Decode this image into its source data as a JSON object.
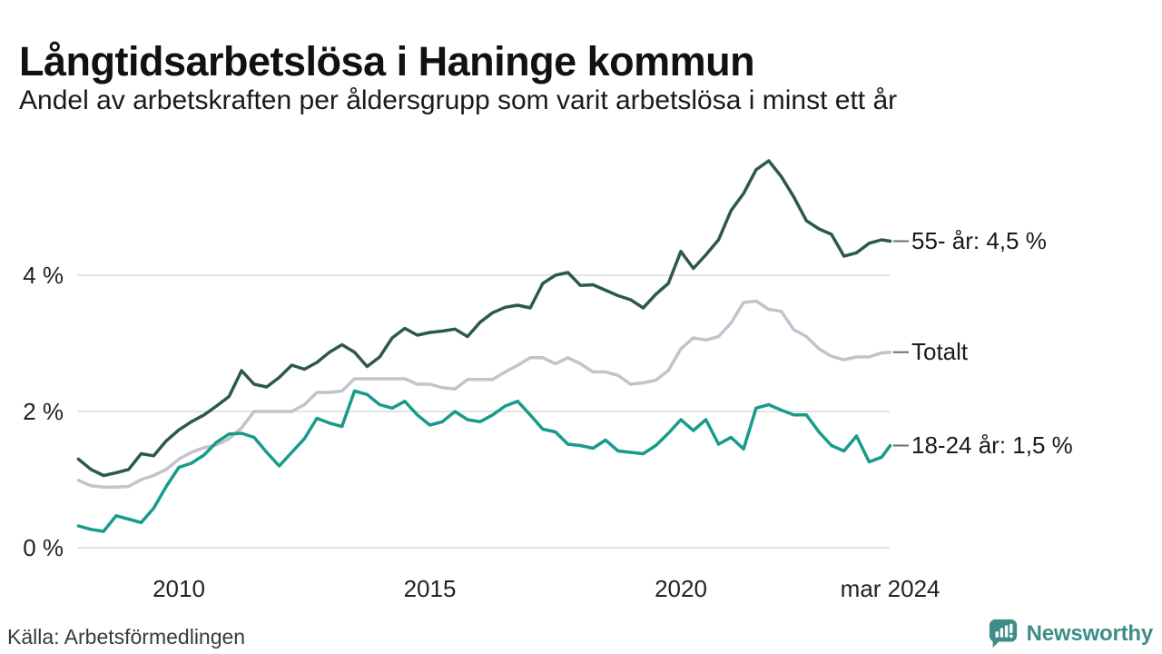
{
  "header": {
    "title": "Långtidsarbetslösa i Haninge kommun",
    "subtitle": "Andel av arbetskraften per åldersgrupp som varit arbetslösa i minst ett år"
  },
  "chart_data": {
    "type": "line",
    "title": "Långtidsarbetslösa i Haninge kommun",
    "xlabel": "",
    "ylabel": "",
    "grid": "horizontal",
    "legend_position": "end-of-line",
    "ylim": [
      0,
      6.2
    ],
    "x": [
      2008.0,
      2008.25,
      2008.5,
      2008.75,
      2009.0,
      2009.25,
      2009.5,
      2009.75,
      2010.0,
      2010.25,
      2010.5,
      2010.75,
      2011.0,
      2011.25,
      2011.5,
      2011.75,
      2012.0,
      2012.25,
      2012.5,
      2012.75,
      2013.0,
      2013.25,
      2013.5,
      2013.75,
      2014.0,
      2014.25,
      2014.5,
      2014.75,
      2015.0,
      2015.25,
      2015.5,
      2015.75,
      2016.0,
      2016.25,
      2016.5,
      2016.75,
      2017.0,
      2017.25,
      2017.5,
      2017.75,
      2018.0,
      2018.25,
      2018.5,
      2018.75,
      2019.0,
      2019.25,
      2019.5,
      2019.75,
      2020.0,
      2020.25,
      2020.5,
      2020.75,
      2021.0,
      2021.25,
      2021.5,
      2021.75,
      2022.0,
      2022.25,
      2022.5,
      2022.75,
      2023.0,
      2023.25,
      2023.5,
      2023.75,
      2024.0,
      2024.17
    ],
    "series": [
      {
        "name": "55- år",
        "end_label": "55- år: 4,5 %",
        "end_value_text": "4,5 %",
        "color": "#2c5a49",
        "values": [
          1.3,
          1.15,
          1.06,
          1.1,
          1.15,
          1.38,
          1.35,
          1.57,
          1.73,
          1.85,
          1.95,
          2.08,
          2.22,
          2.6,
          2.4,
          2.36,
          2.5,
          2.68,
          2.62,
          2.72,
          2.87,
          2.98,
          2.87,
          2.66,
          2.8,
          3.08,
          3.22,
          3.12,
          3.16,
          3.18,
          3.21,
          3.1,
          3.31,
          3.45,
          3.53,
          3.56,
          3.52,
          3.88,
          4.0,
          4.04,
          3.85,
          3.86,
          3.78,
          3.7,
          3.64,
          3.52,
          3.72,
          3.88,
          4.35,
          4.1,
          4.3,
          4.52,
          4.95,
          5.2,
          5.55,
          5.68,
          5.45,
          5.15,
          4.8,
          4.68,
          4.6,
          4.28,
          4.33,
          4.47,
          4.52,
          4.5
        ]
      },
      {
        "name": "Totalt",
        "end_label": "Totalt",
        "end_value_text": "",
        "color": "#c3c2ce",
        "values": [
          0.99,
          0.91,
          0.89,
          0.89,
          0.9,
          1.0,
          1.06,
          1.15,
          1.3,
          1.4,
          1.47,
          1.51,
          1.6,
          1.76,
          2.0,
          2.0,
          2.0,
          2.0,
          2.1,
          2.28,
          2.28,
          2.3,
          2.48,
          2.48,
          2.48,
          2.48,
          2.48,
          2.4,
          2.4,
          2.35,
          2.33,
          2.47,
          2.47,
          2.47,
          2.58,
          2.68,
          2.79,
          2.79,
          2.7,
          2.79,
          2.7,
          2.58,
          2.58,
          2.53,
          2.4,
          2.42,
          2.46,
          2.6,
          2.92,
          3.08,
          3.05,
          3.1,
          3.3,
          3.6,
          3.62,
          3.5,
          3.47,
          3.2,
          3.1,
          2.92,
          2.81,
          2.76,
          2.8,
          2.8,
          2.86,
          2.87
        ]
      },
      {
        "name": "18-24 år",
        "end_label": "18-24 år: 1,5 %",
        "end_value_text": "1,5 %",
        "color": "#179b8b",
        "values": [
          0.32,
          0.27,
          0.24,
          0.47,
          0.42,
          0.37,
          0.58,
          0.9,
          1.18,
          1.24,
          1.36,
          1.55,
          1.67,
          1.68,
          1.62,
          1.4,
          1.2,
          1.4,
          1.6,
          1.9,
          1.83,
          1.78,
          2.3,
          2.25,
          2.1,
          2.05,
          2.15,
          1.95,
          1.8,
          1.85,
          2.0,
          1.88,
          1.85,
          1.95,
          2.08,
          2.15,
          1.95,
          1.74,
          1.7,
          1.52,
          1.5,
          1.46,
          1.58,
          1.42,
          1.4,
          1.38,
          1.5,
          1.68,
          1.88,
          1.72,
          1.88,
          1.52,
          1.62,
          1.45,
          2.05,
          2.1,
          2.02,
          1.95,
          1.95,
          1.7,
          1.5,
          1.42,
          1.64,
          1.26,
          1.33,
          1.5
        ]
      }
    ],
    "yticks": [
      {
        "label": "0 %",
        "value": 0
      },
      {
        "label": "2 %",
        "value": 2
      },
      {
        "label": "4 %",
        "value": 4
      }
    ],
    "xticks": [
      {
        "label": "2010",
        "year": 2010
      },
      {
        "label": "2015",
        "year": 2015
      },
      {
        "label": "2020",
        "year": 2020
      },
      {
        "label": "mar 2024",
        "year": 2024.17
      }
    ],
    "colors": {
      "gridline": "#e4e4e6",
      "end_tick": "#6e6e6e"
    }
  },
  "footer": {
    "source": "Källa: Arbetsförmedlingen",
    "logo_text": "Newsworthy",
    "logo_color": "#3e8d87"
  }
}
